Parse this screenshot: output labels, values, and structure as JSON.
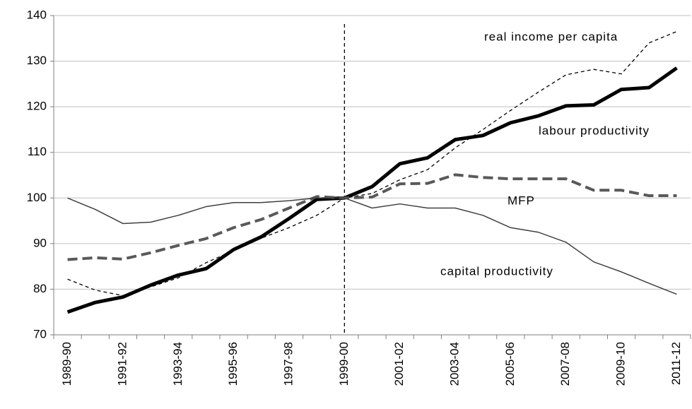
{
  "chart_data": {
    "type": "line",
    "categories": [
      "1989-90",
      null,
      "1991-92",
      null,
      "1993-94",
      null,
      "1995-96",
      null,
      "1997-98",
      null,
      "1999-00",
      null,
      "2001-02",
      null,
      "2003-04",
      null,
      "2005-06",
      null,
      "2007-08",
      null,
      "2009-10",
      null,
      "2011-12"
    ],
    "series": [
      {
        "name": "real income per capita",
        "color": "#000000",
        "width": 1.3,
        "dash": "5,4",
        "values": [
          82.2,
          79.8,
          78.6,
          80.5,
          82.5,
          85.8,
          88.5,
          91.2,
          93.5,
          96.2,
          100,
          101,
          104,
          106.2,
          111,
          115,
          119.2,
          123.2,
          127,
          128.2,
          127.2,
          134,
          136.5
        ]
      },
      {
        "name": "labour productivity",
        "color": "#000000",
        "width": 5,
        "dash": "none",
        "values": [
          75,
          77.1,
          78.3,
          80.9,
          83.1,
          84.5,
          88.7,
          91.5,
          95.5,
          99.7,
          100,
          102.5,
          107.5,
          108.8,
          112.8,
          113.7,
          116.5,
          118,
          120.2,
          120.4,
          123.8,
          124.2,
          128.5
        ]
      },
      {
        "name": "MFP",
        "color": "#595959",
        "width": 4,
        "dash": "14,7",
        "values": [
          86.5,
          86.9,
          86.6,
          88,
          89.6,
          91.1,
          93.5,
          95.3,
          97.8,
          100.3,
          100,
          100.2,
          103.1,
          103.2,
          105.1,
          104.5,
          104.2,
          104.2,
          104.2,
          101.7,
          101.7,
          100.5,
          100.5
        ]
      },
      {
        "name": "capital productivity",
        "color": "#404040",
        "width": 1.5,
        "dash": "none",
        "values": [
          100,
          97.5,
          94.4,
          94.7,
          96.2,
          98.1,
          99,
          99,
          99.4,
          100,
          100,
          97.8,
          98.7,
          97.8,
          97.8,
          96.2,
          93.5,
          92.5,
          90.3,
          86,
          83.8,
          81.3,
          78.9
        ]
      }
    ],
    "reference_line": "1999-00",
    "ylim": [
      70,
      140
    ],
    "yticks": [
      70,
      80,
      90,
      100,
      110,
      120,
      130,
      140
    ],
    "grid": true
  }
}
